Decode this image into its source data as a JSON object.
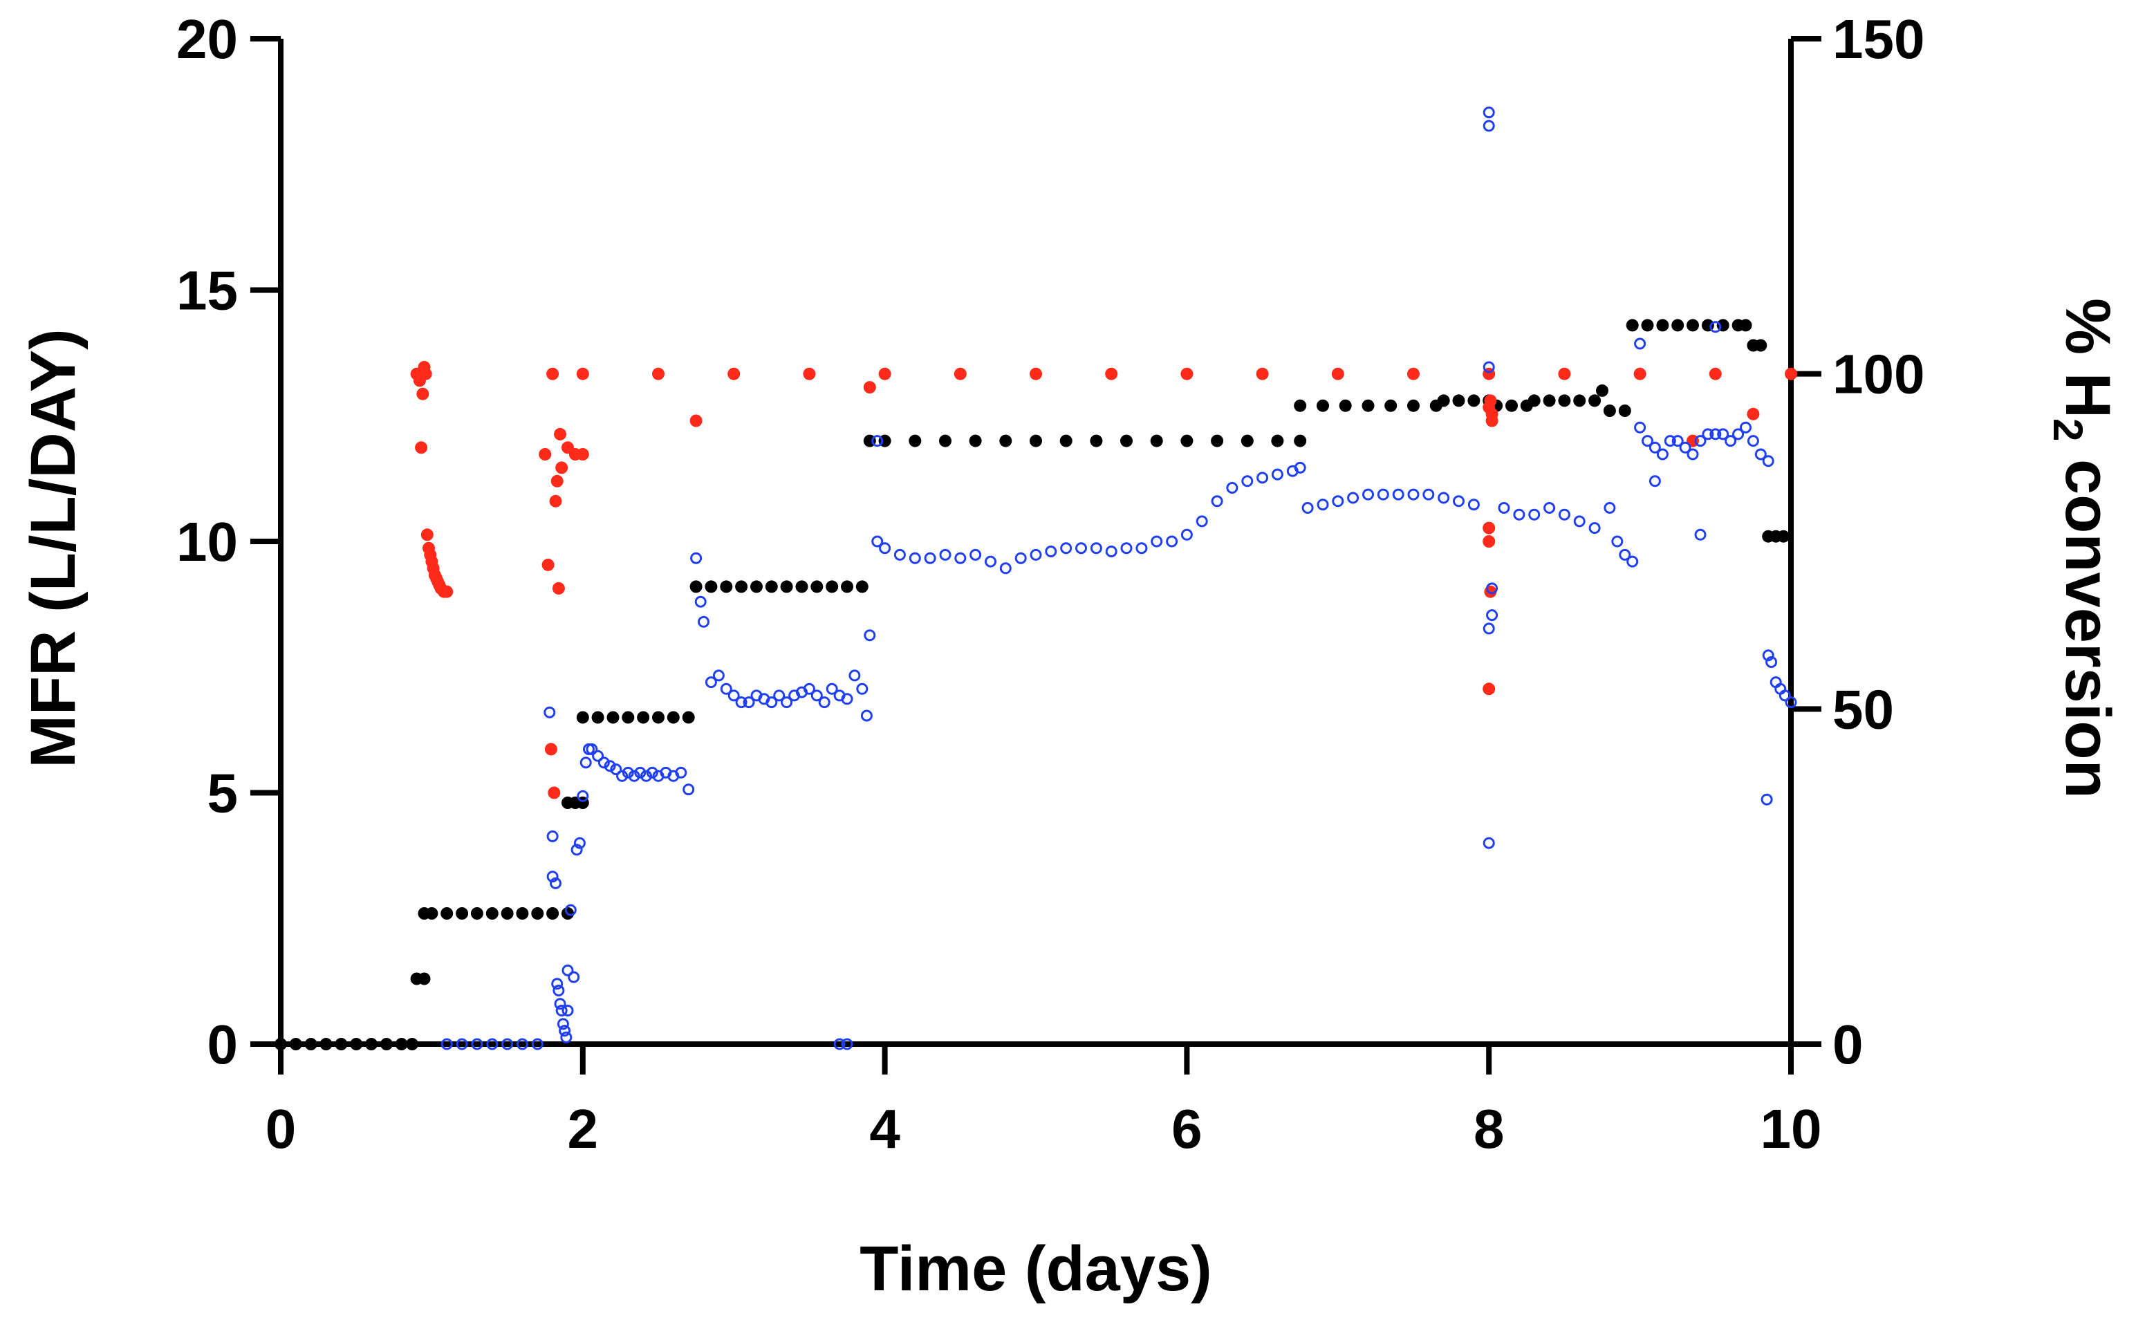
{
  "chart_data": {
    "type": "scatter",
    "xlabel": "Time (days)",
    "ylabel_left": "MFR (L/L/DAY)",
    "ylabel_right_parts": [
      "% H",
      "2",
      " conversion"
    ],
    "xlim": [
      0,
      10
    ],
    "ylim_left": [
      0,
      20
    ],
    "ylim_right": [
      0,
      150
    ],
    "x_ticks": [
      0,
      2,
      4,
      6,
      8,
      10
    ],
    "y_left_ticks": [
      0,
      5,
      10,
      15,
      20
    ],
    "y_right_ticks": [
      0,
      50,
      100,
      150
    ],
    "grid": false,
    "legend": "none",
    "colors": {
      "black": "#000000",
      "red": "#ff2a1a",
      "blue": "#1f3ff0"
    },
    "series": [
      {
        "axis": "left",
        "color": "black",
        "marker": "filled-circle",
        "points": [
          [
            0.0,
            0
          ],
          [
            0.1,
            0
          ],
          [
            0.2,
            0
          ],
          [
            0.3,
            0
          ],
          [
            0.4,
            0
          ],
          [
            0.5,
            0
          ],
          [
            0.6,
            0
          ],
          [
            0.7,
            0
          ],
          [
            0.8,
            0
          ],
          [
            0.87,
            0
          ],
          [
            0.9,
            1.3
          ],
          [
            0.95,
            1.3
          ],
          [
            0.95,
            2.6
          ],
          [
            1.0,
            2.6
          ],
          [
            1.1,
            2.6
          ],
          [
            1.2,
            2.6
          ],
          [
            1.3,
            2.6
          ],
          [
            1.4,
            2.6
          ],
          [
            1.5,
            2.6
          ],
          [
            1.6,
            2.6
          ],
          [
            1.7,
            2.6
          ],
          [
            1.8,
            2.6
          ],
          [
            1.9,
            2.6
          ],
          [
            1.9,
            4.8
          ],
          [
            1.95,
            4.8
          ],
          [
            2.0,
            4.8
          ],
          [
            2.0,
            6.5
          ],
          [
            2.1,
            6.5
          ],
          [
            2.2,
            6.5
          ],
          [
            2.3,
            6.5
          ],
          [
            2.4,
            6.5
          ],
          [
            2.5,
            6.5
          ],
          [
            2.6,
            6.5
          ],
          [
            2.7,
            6.5
          ],
          [
            2.75,
            9.1
          ],
          [
            2.85,
            9.1
          ],
          [
            2.95,
            9.1
          ],
          [
            3.05,
            9.1
          ],
          [
            3.15,
            9.1
          ],
          [
            3.25,
            9.1
          ],
          [
            3.35,
            9.1
          ],
          [
            3.45,
            9.1
          ],
          [
            3.55,
            9.1
          ],
          [
            3.65,
            9.1
          ],
          [
            3.75,
            9.1
          ],
          [
            3.85,
            9.1
          ],
          [
            3.9,
            12.0
          ],
          [
            4.0,
            12.0
          ],
          [
            4.2,
            12.0
          ],
          [
            4.4,
            12.0
          ],
          [
            4.6,
            12.0
          ],
          [
            4.8,
            12.0
          ],
          [
            5.0,
            12.0
          ],
          [
            5.2,
            12.0
          ],
          [
            5.4,
            12.0
          ],
          [
            5.6,
            12.0
          ],
          [
            5.8,
            12.0
          ],
          [
            6.0,
            12.0
          ],
          [
            6.2,
            12.0
          ],
          [
            6.4,
            12.0
          ],
          [
            6.6,
            12.0
          ],
          [
            6.75,
            12.0
          ],
          [
            6.75,
            12.7
          ],
          [
            6.9,
            12.7
          ],
          [
            7.05,
            12.7
          ],
          [
            7.2,
            12.7
          ],
          [
            7.35,
            12.7
          ],
          [
            7.5,
            12.7
          ],
          [
            7.65,
            12.7
          ],
          [
            7.7,
            12.8
          ],
          [
            7.8,
            12.8
          ],
          [
            7.9,
            12.8
          ],
          [
            8.0,
            12.8
          ],
          [
            8.05,
            12.7
          ],
          [
            8.15,
            12.7
          ],
          [
            8.25,
            12.7
          ],
          [
            8.3,
            12.8
          ],
          [
            8.4,
            12.8
          ],
          [
            8.5,
            12.8
          ],
          [
            8.6,
            12.8
          ],
          [
            8.7,
            12.8
          ],
          [
            8.75,
            13.0
          ],
          [
            8.8,
            12.6
          ],
          [
            8.9,
            12.6
          ],
          [
            8.95,
            14.3
          ],
          [
            9.05,
            14.3
          ],
          [
            9.15,
            14.3
          ],
          [
            9.25,
            14.3
          ],
          [
            9.35,
            14.3
          ],
          [
            9.45,
            14.3
          ],
          [
            9.55,
            14.3
          ],
          [
            9.65,
            14.3
          ],
          [
            9.7,
            14.3
          ],
          [
            9.75,
            13.9
          ],
          [
            9.8,
            13.9
          ],
          [
            9.85,
            10.1
          ],
          [
            9.9,
            10.1
          ],
          [
            9.95,
            10.1
          ]
        ]
      },
      {
        "axis": "right",
        "color": "red",
        "marker": "filled-circle",
        "points": [
          [
            0.9,
            100
          ],
          [
            0.92,
            99
          ],
          [
            0.94,
            97
          ],
          [
            0.95,
            101
          ],
          [
            0.96,
            100
          ],
          [
            0.93,
            89
          ],
          [
            0.97,
            76
          ],
          [
            0.98,
            74
          ],
          [
            0.99,
            73
          ],
          [
            1.0,
            72
          ],
          [
            1.01,
            71
          ],
          [
            1.02,
            70
          ],
          [
            1.03,
            69.5
          ],
          [
            1.04,
            69
          ],
          [
            1.05,
            68.5
          ],
          [
            1.06,
            68
          ],
          [
            1.08,
            67.5
          ],
          [
            1.1,
            67.5
          ],
          [
            1.75,
            88
          ],
          [
            1.77,
            71.5
          ],
          [
            1.79,
            44
          ],
          [
            1.81,
            37.5
          ],
          [
            1.82,
            81
          ],
          [
            1.83,
            84
          ],
          [
            1.84,
            68
          ],
          [
            1.85,
            91
          ],
          [
            1.86,
            86
          ],
          [
            1.9,
            89
          ],
          [
            1.95,
            88
          ],
          [
            2.0,
            88
          ],
          [
            2.75,
            93
          ],
          [
            3.9,
            98
          ],
          [
            8.0,
            95
          ],
          [
            8.01,
            96
          ],
          [
            8.02,
            93
          ],
          [
            8.0,
            77
          ],
          [
            8.0,
            75
          ],
          [
            8.01,
            67.5
          ],
          [
            8.0,
            53
          ],
          [
            8.02,
            94
          ],
          [
            9.35,
            90
          ],
          [
            9.75,
            94
          ],
          [
            1.8,
            100
          ],
          [
            2.0,
            100
          ],
          [
            2.5,
            100
          ],
          [
            3.0,
            100
          ],
          [
            3.5,
            100
          ],
          [
            4.0,
            100
          ],
          [
            4.5,
            100
          ],
          [
            5.0,
            100
          ],
          [
            5.5,
            100
          ],
          [
            6.0,
            100
          ],
          [
            6.5,
            100
          ],
          [
            7.0,
            100
          ],
          [
            7.5,
            100
          ],
          [
            8.0,
            100
          ],
          [
            8.5,
            100
          ],
          [
            9.0,
            100
          ],
          [
            9.5,
            100
          ],
          [
            10.0,
            100
          ]
        ]
      },
      {
        "axis": "right",
        "color": "blue",
        "marker": "open-circle",
        "points": [
          [
            1.1,
            0
          ],
          [
            1.2,
            0
          ],
          [
            1.3,
            0
          ],
          [
            1.4,
            0
          ],
          [
            1.5,
            0
          ],
          [
            1.6,
            0
          ],
          [
            1.7,
            0
          ],
          [
            3.7,
            0
          ],
          [
            3.75,
            0
          ],
          [
            1.78,
            49.5
          ],
          [
            1.8,
            31
          ],
          [
            1.8,
            25
          ],
          [
            1.82,
            24
          ],
          [
            1.83,
            9
          ],
          [
            1.84,
            8
          ],
          [
            1.85,
            6
          ],
          [
            1.86,
            5
          ],
          [
            1.87,
            3
          ],
          [
            1.88,
            2
          ],
          [
            1.89,
            1
          ],
          [
            1.9,
            5
          ],
          [
            1.9,
            11
          ],
          [
            1.92,
            20
          ],
          [
            1.94,
            10
          ],
          [
            1.96,
            29
          ],
          [
            1.98,
            30
          ],
          [
            2.0,
            37
          ],
          [
            2.02,
            42
          ],
          [
            2.04,
            44
          ],
          [
            2.06,
            44
          ],
          [
            2.1,
            43
          ],
          [
            2.14,
            42
          ],
          [
            2.18,
            41.5
          ],
          [
            2.22,
            41
          ],
          [
            2.26,
            40
          ],
          [
            2.3,
            40.5
          ],
          [
            2.34,
            40
          ],
          [
            2.38,
            40.5
          ],
          [
            2.42,
            40
          ],
          [
            2.46,
            40.5
          ],
          [
            2.5,
            40
          ],
          [
            2.55,
            40.5
          ],
          [
            2.6,
            40
          ],
          [
            2.65,
            40.5
          ],
          [
            2.7,
            38
          ],
          [
            2.75,
            72.5
          ],
          [
            2.78,
            66
          ],
          [
            2.8,
            63
          ],
          [
            2.85,
            54
          ],
          [
            2.9,
            55
          ],
          [
            2.95,
            53
          ],
          [
            3.0,
            52
          ],
          [
            3.05,
            51
          ],
          [
            3.1,
            51
          ],
          [
            3.15,
            52
          ],
          [
            3.2,
            51.5
          ],
          [
            3.25,
            51
          ],
          [
            3.3,
            52
          ],
          [
            3.35,
            51
          ],
          [
            3.4,
            52
          ],
          [
            3.45,
            52.5
          ],
          [
            3.5,
            53
          ],
          [
            3.55,
            52
          ],
          [
            3.6,
            51
          ],
          [
            3.65,
            53
          ],
          [
            3.7,
            52
          ],
          [
            3.75,
            51.5
          ],
          [
            3.8,
            55
          ],
          [
            3.85,
            53
          ],
          [
            3.88,
            49
          ],
          [
            3.9,
            61
          ],
          [
            3.95,
            90
          ],
          [
            3.95,
            75
          ],
          [
            4.0,
            74
          ],
          [
            4.1,
            73
          ],
          [
            4.2,
            72.5
          ],
          [
            4.3,
            72.5
          ],
          [
            4.4,
            73
          ],
          [
            4.5,
            72.5
          ],
          [
            4.6,
            73
          ],
          [
            4.7,
            72
          ],
          [
            4.8,
            71
          ],
          [
            4.9,
            72.5
          ],
          [
            5.0,
            73
          ],
          [
            5.1,
            73.5
          ],
          [
            5.2,
            74
          ],
          [
            5.3,
            74
          ],
          [
            5.4,
            74
          ],
          [
            5.5,
            73.5
          ],
          [
            5.6,
            74
          ],
          [
            5.7,
            74
          ],
          [
            5.8,
            75
          ],
          [
            5.9,
            75
          ],
          [
            6.0,
            76
          ],
          [
            6.1,
            78
          ],
          [
            6.2,
            81
          ],
          [
            6.3,
            83
          ],
          [
            6.4,
            84
          ],
          [
            6.5,
            84.5
          ],
          [
            6.6,
            85
          ],
          [
            6.7,
            85.5
          ],
          [
            6.75,
            86
          ],
          [
            6.8,
            80
          ],
          [
            6.9,
            80.5
          ],
          [
            7.0,
            81
          ],
          [
            7.1,
            81.5
          ],
          [
            7.2,
            82
          ],
          [
            7.3,
            82
          ],
          [
            7.4,
            82
          ],
          [
            7.5,
            82
          ],
          [
            7.6,
            82
          ],
          [
            7.7,
            81.5
          ],
          [
            7.8,
            81
          ],
          [
            7.9,
            80.5
          ],
          [
            8.0,
            139
          ],
          [
            8.0,
            137
          ],
          [
            8.0,
            101
          ],
          [
            8.0,
            30
          ],
          [
            8.02,
            68
          ],
          [
            8.02,
            64
          ],
          [
            8.0,
            62
          ],
          [
            8.1,
            80
          ],
          [
            8.2,
            79
          ],
          [
            8.3,
            79
          ],
          [
            8.4,
            80
          ],
          [
            8.5,
            79
          ],
          [
            8.6,
            78
          ],
          [
            8.7,
            77
          ],
          [
            8.8,
            80
          ],
          [
            8.85,
            75
          ],
          [
            8.9,
            73
          ],
          [
            8.95,
            72
          ],
          [
            9.0,
            104.5
          ],
          [
            9.0,
            92
          ],
          [
            9.05,
            90
          ],
          [
            9.1,
            89
          ],
          [
            9.15,
            88
          ],
          [
            9.2,
            90
          ],
          [
            9.25,
            90
          ],
          [
            9.3,
            89
          ],
          [
            9.35,
            88
          ],
          [
            9.4,
            90
          ],
          [
            9.45,
            91
          ],
          [
            9.5,
            91
          ],
          [
            9.55,
            91
          ],
          [
            9.6,
            90
          ],
          [
            9.65,
            91
          ],
          [
            9.7,
            92
          ],
          [
            9.75,
            90
          ],
          [
            9.8,
            88
          ],
          [
            9.85,
            87
          ],
          [
            9.1,
            84
          ],
          [
            9.4,
            76
          ],
          [
            9.5,
            107
          ],
          [
            9.85,
            58
          ],
          [
            9.87,
            57
          ],
          [
            9.9,
            54
          ],
          [
            9.93,
            53
          ],
          [
            9.96,
            52
          ],
          [
            10.0,
            51
          ],
          [
            9.84,
            36.5
          ]
        ]
      }
    ]
  }
}
